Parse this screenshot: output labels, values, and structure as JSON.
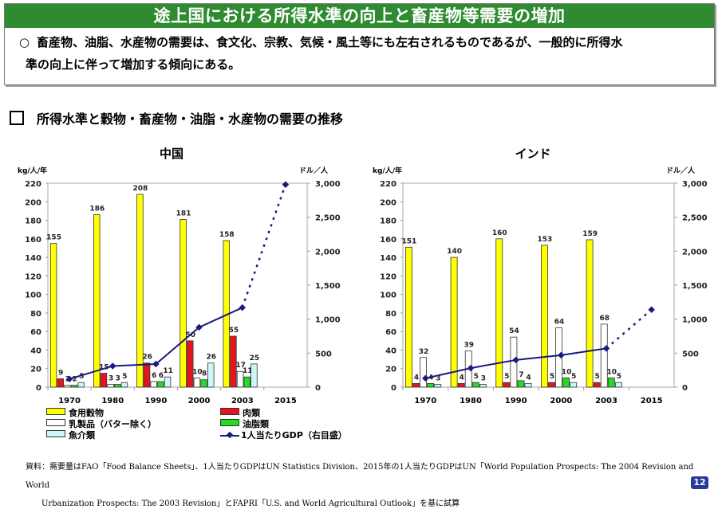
{
  "header": {
    "title": "途上国における所得水準の向上と畜産物等需要の増加",
    "bullet": "○",
    "lead_line1": "畜産物、油脂、水産物の需要は、食文化、宗教、気候・風土等にも左右されるものであるが、一般的に所得水",
    "lead_line2": "準の向上に伴って増加する傾向にある。"
  },
  "section": {
    "bullet": "□",
    "title": "所得水準と穀物・畜産物・油脂・水産物の需要の推移"
  },
  "colors": {
    "title_bar": "#2e8b30",
    "grain": "#ffff00",
    "meat": "#e8141c",
    "dairy": "#ffffff",
    "oils": "#22dd22",
    "fish": "#ccf6f8",
    "gdp": "#1a1a80",
    "page_badge": "#2a3a9a"
  },
  "legend": {
    "grain": "食用穀物",
    "meat": "肉類",
    "dairy": "乳製品（バター除く）",
    "oils": "油脂類",
    "fish": "魚介類",
    "gdp": "1人当たりGDP（右目盛）"
  },
  "chart_data": [
    {
      "type": "bar",
      "title": "中国",
      "ylabel": "kg/人/年",
      "y2label": "ドル／人",
      "ylim": [
        0,
        220
      ],
      "yticks": [
        0,
        20,
        40,
        60,
        80,
        100,
        120,
        140,
        160,
        180,
        200,
        220
      ],
      "y2lim": [
        0,
        3000
      ],
      "y2ticks": [
        "0",
        "500",
        "1,000",
        "1,500",
        "2,000",
        "2,500",
        "3,000"
      ],
      "categories": [
        "1970",
        "1980",
        "1990",
        "2000",
        "2003",
        "2015"
      ],
      "series": [
        {
          "name": "食用穀物",
          "key": "grain",
          "values": [
            155,
            186,
            208,
            181,
            158,
            null
          ]
        },
        {
          "name": "肉類",
          "key": "meat",
          "values": [
            9,
            15,
            26,
            50,
            55,
            null
          ]
        },
        {
          "name": "乳製品（バター除く）",
          "key": "dairy",
          "values": [
            2,
            3,
            6,
            10,
            17,
            null
          ]
        },
        {
          "name": "油脂類",
          "key": "oils",
          "values": [
            2,
            3,
            6,
            8,
            11,
            null
          ]
        },
        {
          "name": "魚介類",
          "key": "fish",
          "values": [
            5,
            5,
            11,
            26,
            25,
            null
          ]
        },
        {
          "name": "1人当たりGDP（右目盛）",
          "key": "gdp",
          "type": "line",
          "axis": "right",
          "values": [
            120,
            310,
            340,
            880,
            1170,
            2980
          ],
          "projected_from_index": 4
        }
      ],
      "labels": {
        "grain": [
          "155",
          "186",
          "208",
          "181",
          "158",
          ""
        ],
        "meat": [
          "9",
          "15",
          "26",
          "50",
          "55",
          ""
        ],
        "dairy": [
          "2",
          "3",
          "6",
          "10",
          "17",
          ""
        ],
        "oils": [
          "2",
          "3",
          "6",
          "8",
          "11",
          ""
        ],
        "fish": [
          "5",
          "5",
          "11",
          "26",
          "25",
          ""
        ]
      }
    },
    {
      "type": "bar",
      "title": "インド",
      "ylabel": "kg/人/年",
      "y2label": "ドル／人",
      "ylim": [
        0,
        220
      ],
      "yticks": [
        0,
        20,
        40,
        60,
        80,
        100,
        120,
        140,
        160,
        180,
        200,
        220
      ],
      "y2lim": [
        0,
        3000
      ],
      "y2ticks": [
        "0",
        "500",
        "1,000",
        "1,500",
        "2,000",
        "2,500",
        "3,000"
      ],
      "categories": [
        "1970",
        "1980",
        "1990",
        "2000",
        "2003",
        "2015"
      ],
      "series": [
        {
          "name": "食用穀物",
          "key": "grain",
          "values": [
            151,
            140,
            160,
            153,
            159,
            null
          ]
        },
        {
          "name": "肉類",
          "key": "meat",
          "values": [
            4,
            4,
            5,
            5,
            5,
            null
          ]
        },
        {
          "name": "乳製品（バター除く）",
          "key": "dairy",
          "values": [
            32,
            39,
            54,
            64,
            68,
            null
          ]
        },
        {
          "name": "油脂類",
          "key": "oils",
          "values": [
            4,
            5,
            7,
            10,
            10,
            null
          ]
        },
        {
          "name": "魚介類",
          "key": "fish",
          "values": [
            3,
            3,
            4,
            5,
            5,
            null
          ]
        },
        {
          "name": "1人当たりGDP（右目盛）",
          "key": "gdp",
          "type": "line",
          "axis": "right",
          "values": [
            130,
            280,
            400,
            470,
            570,
            1140
          ],
          "projected_from_index": 4
        }
      ],
      "labels": {
        "grain": [
          "151",
          "140",
          "160",
          "153",
          "159",
          ""
        ],
        "meat": [
          "4",
          "4",
          "5",
          "5",
          "5",
          ""
        ],
        "dairy": [
          "32",
          "39",
          "54",
          "64",
          "68",
          ""
        ],
        "oils": [
          "4",
          "5",
          "7",
          "10",
          "10",
          ""
        ],
        "fish": [
          "3",
          "3",
          "4",
          "5",
          "5",
          ""
        ]
      }
    }
  ],
  "source": {
    "line1": "資料：需要量はFAO「Food Balance Sheets」、1人当たりGDPはUN Statistics Division、2015年の1人当たりGDPはUN「World Population Prospects: The 2004 Revision and World",
    "line2": "Urbanization Prospects: The 2003 Revision」とFAPRI「U.S. and World Agricultural Outlook」を基に試算"
  },
  "page_number": "12"
}
